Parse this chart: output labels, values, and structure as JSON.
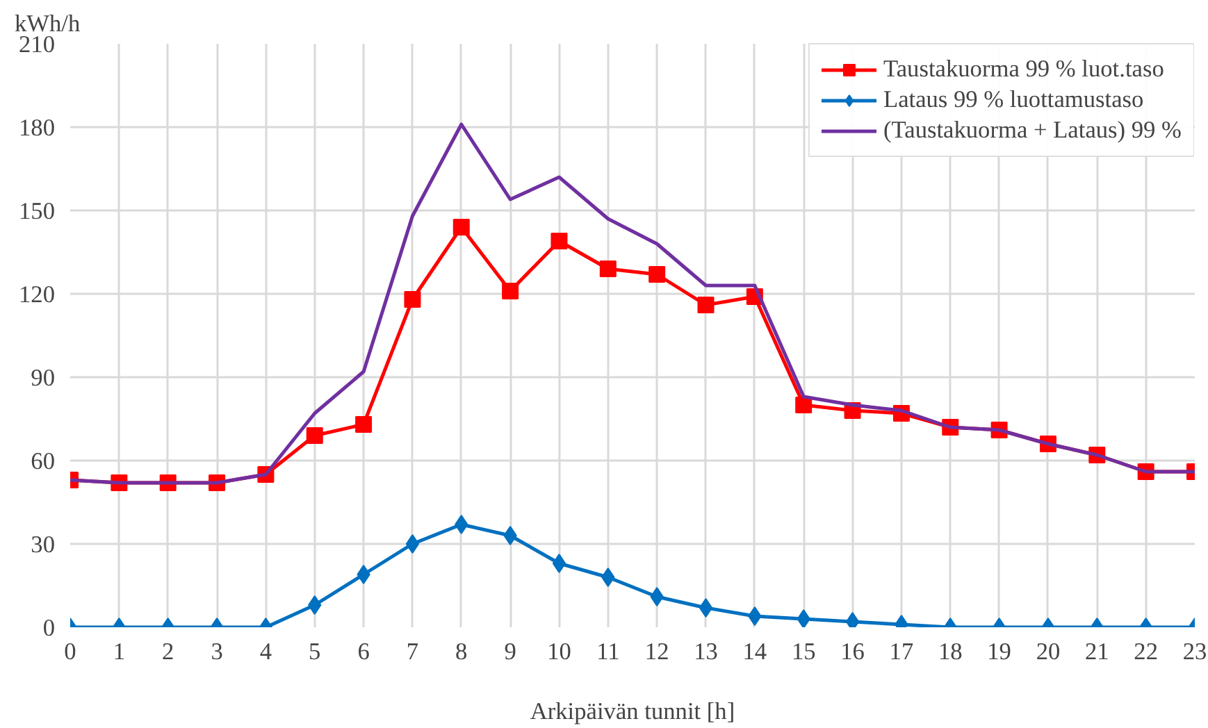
{
  "chart_data": {
    "type": "line",
    "ylabel": "kWh/h",
    "xlabel": "Arkipäivän tunnit [h]",
    "x": [
      0,
      1,
      2,
      3,
      4,
      5,
      6,
      7,
      8,
      9,
      10,
      11,
      12,
      13,
      14,
      15,
      16,
      17,
      18,
      19,
      20,
      21,
      22,
      23
    ],
    "xlim": [
      0,
      23
    ],
    "xticks": [
      0,
      1,
      2,
      3,
      4,
      5,
      6,
      7,
      8,
      9,
      10,
      11,
      12,
      13,
      14,
      15,
      16,
      17,
      18,
      19,
      20,
      21,
      22,
      23
    ],
    "ylim": [
      0,
      210
    ],
    "yticks": [
      0,
      30,
      60,
      90,
      120,
      150,
      180,
      210
    ],
    "grid": true,
    "legend": "top right",
    "series": [
      {
        "name": "Taustakuorma 99 % luot.taso",
        "color": "#ff0000",
        "marker": "square",
        "values": [
          53,
          52,
          52,
          52,
          55,
          69,
          73,
          118,
          144,
          121,
          139,
          129,
          127,
          116,
          119,
          80,
          78,
          77,
          72,
          71,
          66,
          62,
          56,
          56
        ]
      },
      {
        "name": "Lataus 99 % luottamustaso",
        "color": "#0070c0",
        "marker": "diamond",
        "values": [
          0,
          0,
          0,
          0,
          0,
          8,
          19,
          30,
          37,
          33,
          23,
          18,
          11,
          7,
          4,
          3,
          2,
          1,
          0,
          0,
          0,
          0,
          0,
          0
        ]
      },
      {
        "name": "(Taustakuorma + Lataus) 99 %",
        "color": "#7030a0",
        "marker": "none",
        "values": [
          53,
          52,
          52,
          52,
          55,
          77,
          92,
          148,
          181,
          154,
          162,
          147,
          138,
          123,
          123,
          83,
          80,
          78,
          72,
          71,
          66,
          62,
          56,
          56
        ]
      }
    ]
  }
}
